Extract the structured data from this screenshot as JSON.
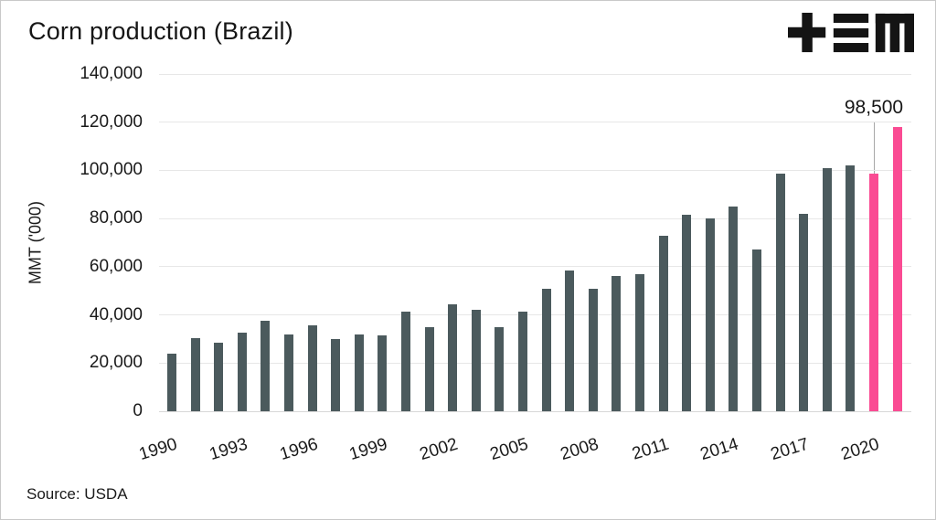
{
  "title": "Corn production (Brazil)",
  "source_label": "Source: USDA",
  "logo": {
    "name": "tem-logo"
  },
  "colors": {
    "bar": "#4b5a5d",
    "highlight": "#fa4b93",
    "grid": "#e7e7e7",
    "zero_line": "#d8d8d8",
    "leader_line": "#a8a8a8",
    "text": "#1a1a1a",
    "logo": "#141414"
  },
  "chart_data": {
    "type": "bar",
    "title": "Corn production (Brazil)",
    "xlabel": "",
    "ylabel": "MMT ('000)",
    "ylim": [
      0,
      140000
    ],
    "ytick_step": 20000,
    "ytick_labels": [
      "0",
      "20,000",
      "40,000",
      "60,000",
      "80,000",
      "100,000",
      "120,000",
      "140,000"
    ],
    "x": [
      1990,
      1991,
      1992,
      1993,
      1994,
      1995,
      1996,
      1997,
      1998,
      1999,
      2000,
      2001,
      2002,
      2003,
      2004,
      2005,
      2006,
      2007,
      2008,
      2009,
      2010,
      2011,
      2012,
      2013,
      2014,
      2015,
      2016,
      2017,
      2018,
      2019,
      2020,
      2021
    ],
    "values": [
      24000,
      30500,
      28500,
      32500,
      37500,
      32000,
      35500,
      30000,
      32000,
      31500,
      41500,
      35000,
      44500,
      42000,
      35000,
      41500,
      51000,
      58500,
      51000,
      56000,
      57000,
      73000,
      81500,
      80000,
      85000,
      67000,
      98500,
      82000,
      101000,
      102000,
      98500,
      118000
    ],
    "xtick_labels": [
      "1990",
      "1993",
      "1996",
      "1999",
      "2002",
      "2005",
      "2008",
      "2011",
      "2014",
      "2017",
      "2020"
    ],
    "highlight_years": [
      2020,
      2021
    ],
    "grid": true,
    "legend": "none",
    "annotation": {
      "year": 2020,
      "label": "98,500"
    }
  }
}
